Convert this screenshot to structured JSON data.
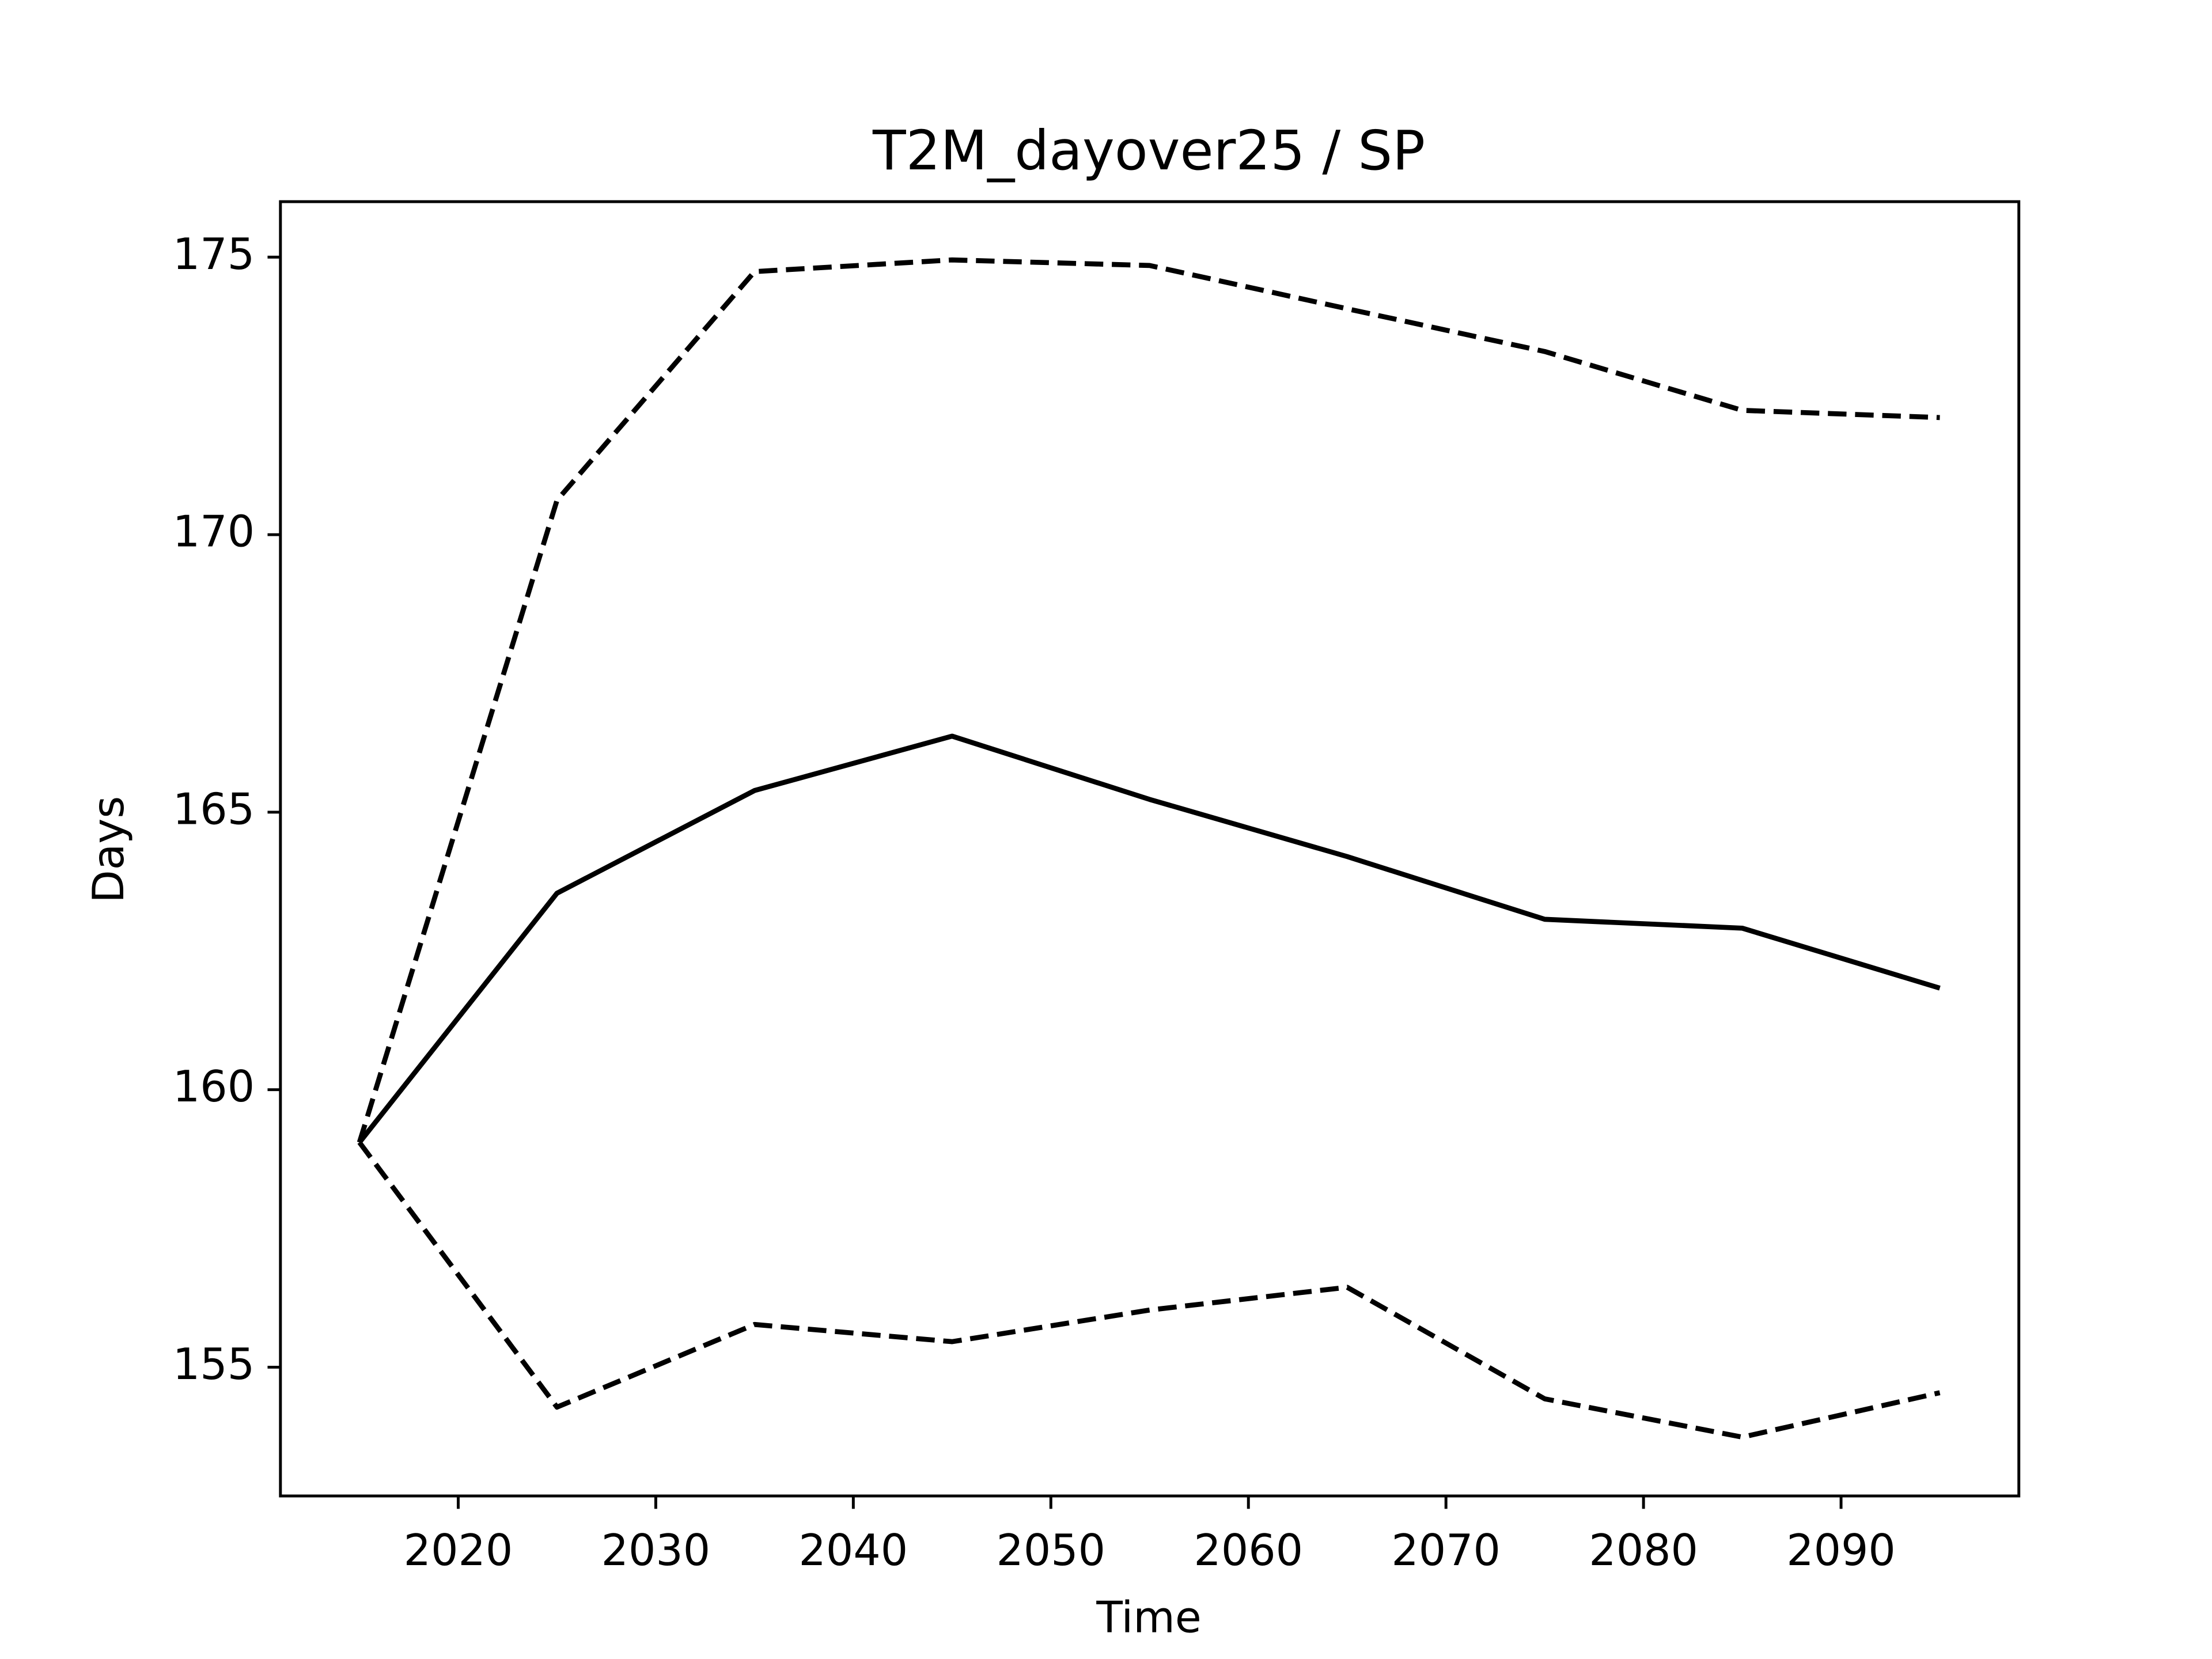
{
  "chart_data": {
    "type": "line",
    "title": "T2M_dayover25 / SP",
    "x_label": "Time",
    "y_label": "Days",
    "x": [
      2015,
      2025,
      2035,
      2045,
      2055,
      2065,
      2075,
      2085,
      2095
    ],
    "series": [
      {
        "color": "#000000",
        "style": "solid",
        "values": [
          159.05,
          163.54,
          165.39,
          166.37,
          165.23,
          164.2,
          163.07,
          162.91,
          161.83
        ]
      },
      {
        "color": "#000000",
        "style": "dashed",
        "values": [
          159.05,
          170.62,
          174.74,
          174.95,
          174.85,
          174.07,
          173.3,
          172.24,
          172.11
        ]
      },
      {
        "color": "#000000",
        "style": "dashed",
        "values": [
          159.05,
          154.28,
          155.77,
          155.46,
          156.03,
          156.44,
          154.43,
          153.74,
          154.54
        ]
      }
    ],
    "xlim": [
      2011,
      2099
    ],
    "xticks": [
      2020,
      2030,
      2040,
      2050,
      2060,
      2070,
      2080,
      2090
    ],
    "ylim": [
      152.68,
      176.0
    ],
    "yticks": [
      155,
      160,
      165,
      170,
      175
    ]
  }
}
